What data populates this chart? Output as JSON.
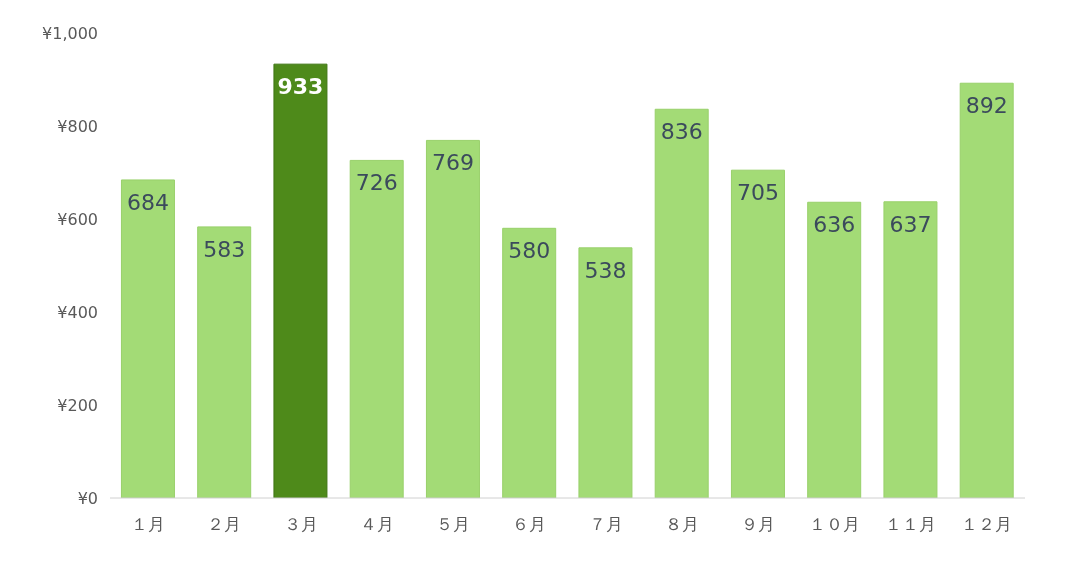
{
  "chart_data": {
    "type": "bar",
    "categories": [
      "１月",
      "２月",
      "３月",
      "４月",
      "５月",
      "６月",
      "７月",
      "８月",
      "９月",
      "１０月",
      "１１月",
      "１２月"
    ],
    "values": [
      684,
      583,
      933,
      726,
      769,
      580,
      538,
      836,
      705,
      636,
      637,
      892
    ],
    "colors": [
      "#a3db76",
      "#a3db76",
      "#4e8a1a",
      "#a3db76",
      "#a3db76",
      "#a3db76",
      "#a3db76",
      "#a3db76",
      "#a3db76",
      "#a3db76",
      "#a3db76",
      "#a3db76"
    ],
    "ylim": [
      0,
      1000
    ],
    "yticks": [
      {
        "value": 0,
        "label": "¥0"
      },
      {
        "value": 200,
        "label": "¥200"
      },
      {
        "value": 400,
        "label": "¥400"
      },
      {
        "value": 600,
        "label": "¥600"
      },
      {
        "value": 800,
        "label": "¥800"
      },
      {
        "value": 1000,
        "label": "¥1,000"
      }
    ],
    "grid": false,
    "legend": false,
    "data_labels": true
  }
}
